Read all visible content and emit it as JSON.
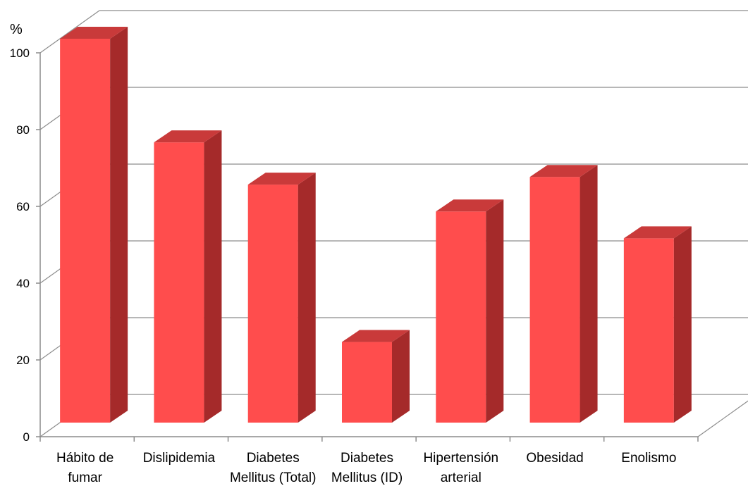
{
  "chart_data": {
    "type": "bar",
    "style": "3d-column",
    "ylabel": "%",
    "ylim": [
      0,
      100
    ],
    "yticks": [
      0,
      20,
      40,
      60,
      80,
      100
    ],
    "grid": true,
    "categories": [
      [
        "Hábito de",
        "fumar"
      ],
      [
        "Dislipidemia"
      ],
      [
        "Diabetes",
        "Mellitus (Total)"
      ],
      [
        "Diabetes",
        "Mellitus (ID)"
      ],
      [
        "Hipertensión",
        "arterial"
      ],
      [
        "Obesidad"
      ],
      [
        "Enolismo"
      ]
    ],
    "values": [
      100,
      73,
      62,
      21,
      55,
      64,
      48
    ],
    "colors": {
      "bar_front": "#ff4d4d",
      "bar_side": "#a52a2a",
      "bar_top": "#c93a3a",
      "grid": "#8c8c8c",
      "axis": "#8c8c8c"
    }
  }
}
